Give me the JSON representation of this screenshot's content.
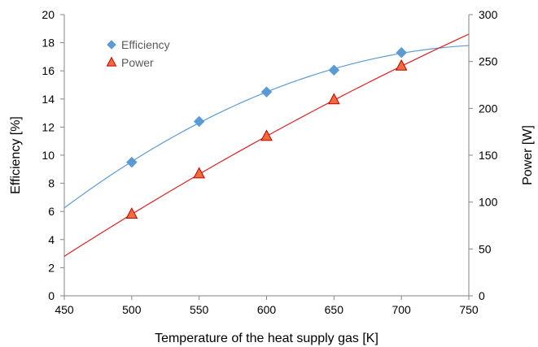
{
  "chart_data": {
    "type": "scatter",
    "xlabel": "Temperature of the heat supply gas [K]",
    "ylabel_left": "Efficiency [%]",
    "ylabel_right": "Power [W]",
    "xlim": [
      450,
      750
    ],
    "ylim_left": [
      0,
      20
    ],
    "ylim_right": [
      0,
      300
    ],
    "x_ticks": [
      450,
      500,
      550,
      600,
      650,
      700,
      750
    ],
    "y_ticks_left": [
      0,
      2,
      4,
      6,
      8,
      10,
      12,
      14,
      16,
      18,
      20
    ],
    "y_ticks_right": [
      0,
      50,
      100,
      150,
      200,
      250,
      300
    ],
    "grid": false,
    "legend_position": "top-left",
    "series": [
      {
        "name": "Efficiency",
        "axis": "left",
        "marker": "diamond",
        "color": "#5B9BD5",
        "x": [
          500,
          550,
          600,
          650,
          700
        ],
        "y": [
          9.5,
          12.4,
          14.5,
          16.05,
          17.3
        ],
        "trend_color": "#5B9BD5"
      },
      {
        "name": "Power",
        "axis": "right",
        "marker": "triangle",
        "color": "#F26B3A",
        "edge_color": "#C00000",
        "x": [
          500,
          550,
          600,
          650,
          700
        ],
        "y": [
          87,
          130,
          170,
          209,
          245
        ],
        "trend_color": "#E02020"
      }
    ]
  }
}
